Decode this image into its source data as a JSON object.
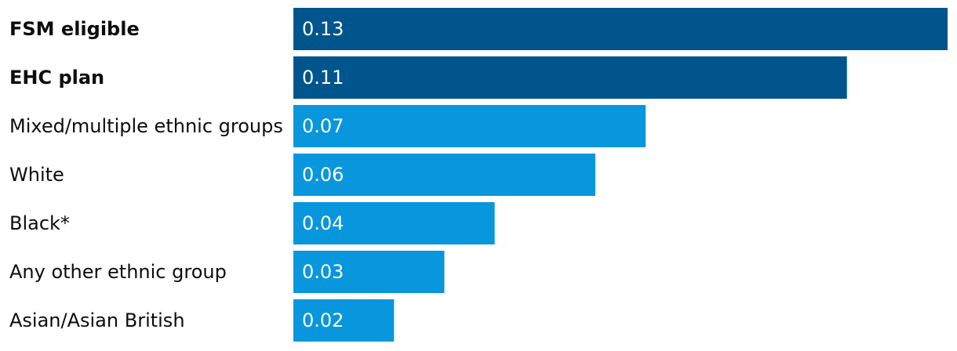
{
  "chart_data": {
    "type": "bar",
    "orientation": "horizontal",
    "categories": [
      "FSM eligible",
      "EHC plan",
      "Mixed/multiple ethnic groups",
      "White",
      "Black*",
      "Any other ethnic group",
      "Asian/Asian British"
    ],
    "values": [
      0.13,
      0.11,
      0.07,
      0.06,
      0.04,
      0.03,
      0.02
    ],
    "value_labels": [
      "0.13",
      "0.11",
      "0.07",
      "0.06",
      "0.04",
      "0.03",
      "0.02"
    ],
    "emphasized": [
      true,
      true,
      false,
      false,
      false,
      false,
      false
    ],
    "colors": {
      "emphasized": "#00558c",
      "default": "#0896dd"
    },
    "xlim": [
      0,
      0.13
    ],
    "grid": false,
    "legend": "none"
  }
}
